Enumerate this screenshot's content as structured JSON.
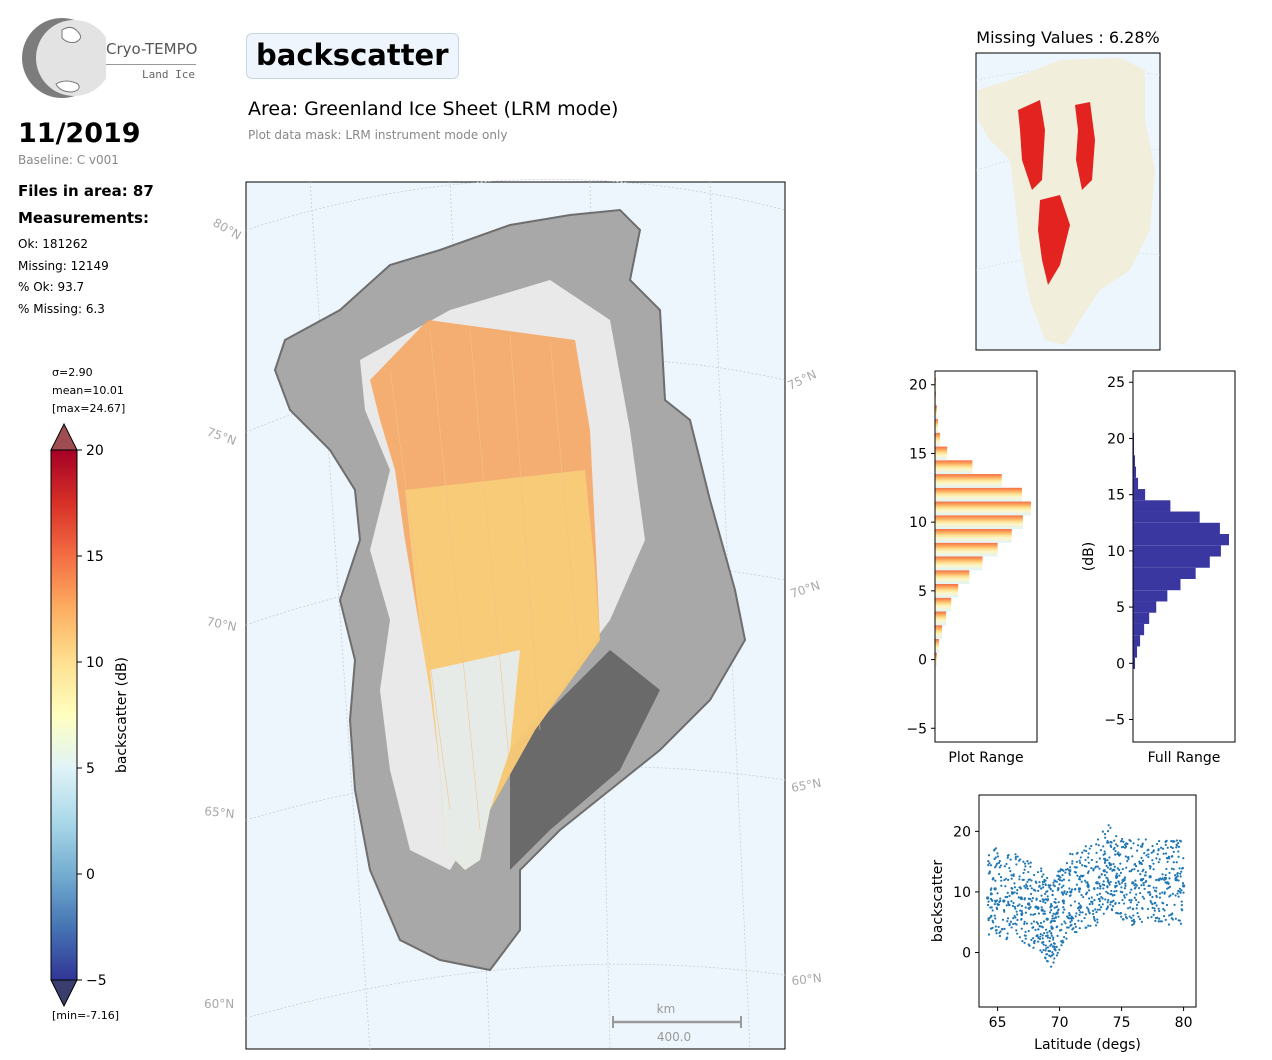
{
  "logo": {
    "name": "Cryo-TEMPO",
    "subtitle": "Land Ice"
  },
  "date": "11/2019",
  "baseline": "Baseline: C v001",
  "files": "Files in area: 87",
  "measurements": {
    "title": "Measurements:",
    "ok": "Ok: 181262",
    "missing": "Missing: 12149",
    "pct_ok": "% Ok: 93.7",
    "pct_missing": "% Missing: 6.3"
  },
  "colorbar": {
    "sigma": "σ=2.90",
    "mean": "mean=10.01",
    "max": "[max=24.67]",
    "min": "[min=-7.16]",
    "label": "backscatter (dB)",
    "ticks": [
      "20",
      "15",
      "10",
      "5",
      "0",
      "−5"
    ]
  },
  "variable": "backscatter",
  "area_title": "Area: Greenland Ice Sheet (LRM mode)",
  "mask_note": "Plot data mask: LRM instrument mode only",
  "map": {
    "lat_labels_left": [
      "80°N",
      "75°N",
      "70°N",
      "65°N",
      "60°N"
    ],
    "lat_labels_right": [
      "75°N",
      "70°N",
      "65°N",
      "60°N"
    ],
    "scale_unit": "km",
    "scale_value": "400.0"
  },
  "missing_title": "Missing Values : 6.28%",
  "colors": {
    "ocean": "#eef6fd",
    "land": "#f1eedb",
    "missing": "#e00000",
    "hist_full": "#3a37a0",
    "scatter": "#1f77b4"
  },
  "chart_data": [
    {
      "type": "bar",
      "orientation": "horizontal",
      "xlabel": "Plot Range",
      "ylim": [
        -6,
        21
      ],
      "yticks": [
        "20",
        "15",
        "10",
        "5",
        "0",
        "−5"
      ],
      "bins": [
        -0.5,
        0.5,
        1.5,
        2.5,
        3.5,
        4.5,
        5.5,
        6.5,
        7.5,
        8.5,
        9.5,
        10.5,
        11.5,
        12.5,
        13.5,
        14.5,
        15.5,
        16.5,
        17.5,
        18.5,
        19.5
      ],
      "counts": [
        2,
        4,
        7,
        11,
        16,
        23,
        34,
        47,
        62,
        76,
        87,
        95,
        86,
        66,
        37,
        12,
        5,
        3,
        2,
        1,
        1
      ]
    },
    {
      "type": "bar",
      "orientation": "horizontal",
      "xlabel": "Full Range",
      "ylabel": "(dB)",
      "ylim": [
        -7,
        26
      ],
      "yticks": [
        "25",
        "20",
        "15",
        "10",
        "5",
        "0",
        "−5"
      ],
      "bins": [
        -0.5,
        0.5,
        1.5,
        2.5,
        3.5,
        4.5,
        5.5,
        6.5,
        7.5,
        8.5,
        9.5,
        10.5,
        11.5,
        12.5,
        13.5,
        14.5,
        15.5,
        16.5,
        17.5,
        18.5,
        19.5
      ],
      "counts": [
        2,
        4,
        7,
        11,
        16,
        23,
        34,
        47,
        62,
        76,
        87,
        95,
        86,
        66,
        37,
        12,
        5,
        3,
        2,
        1,
        1
      ]
    },
    {
      "type": "scatter",
      "xlabel": "Latitude (degs)",
      "ylabel": "backscatter",
      "xlim": [
        63.5,
        81.0
      ],
      "ylim": [
        -9,
        26
      ],
      "xticks": [
        "65",
        "70",
        "75",
        "80"
      ],
      "yticks": [
        "20",
        "10",
        "0"
      ],
      "x": [
        64.2,
        64.8,
        65.5,
        66.2,
        66.9,
        67.5,
        68.1,
        68.6,
        69.0,
        69.4,
        69.8,
        70.3,
        70.9,
        71.6,
        72.3,
        73.0,
        73.6,
        74.1,
        74.6,
        75.2,
        75.9,
        76.6,
        77.3,
        78.0,
        78.7,
        79.4,
        80.0
      ],
      "y": [
        9.0,
        10.5,
        8.5,
        9.8,
        9.0,
        8.0,
        7.5,
        7.0,
        5.5,
        4.0,
        6.5,
        8.5,
        10.0,
        10.5,
        11.0,
        11.5,
        13.5,
        14.5,
        12.5,
        12.0,
        11.5,
        12.0,
        12.5,
        12.0,
        11.5,
        12.0,
        11.0
      ]
    }
  ]
}
